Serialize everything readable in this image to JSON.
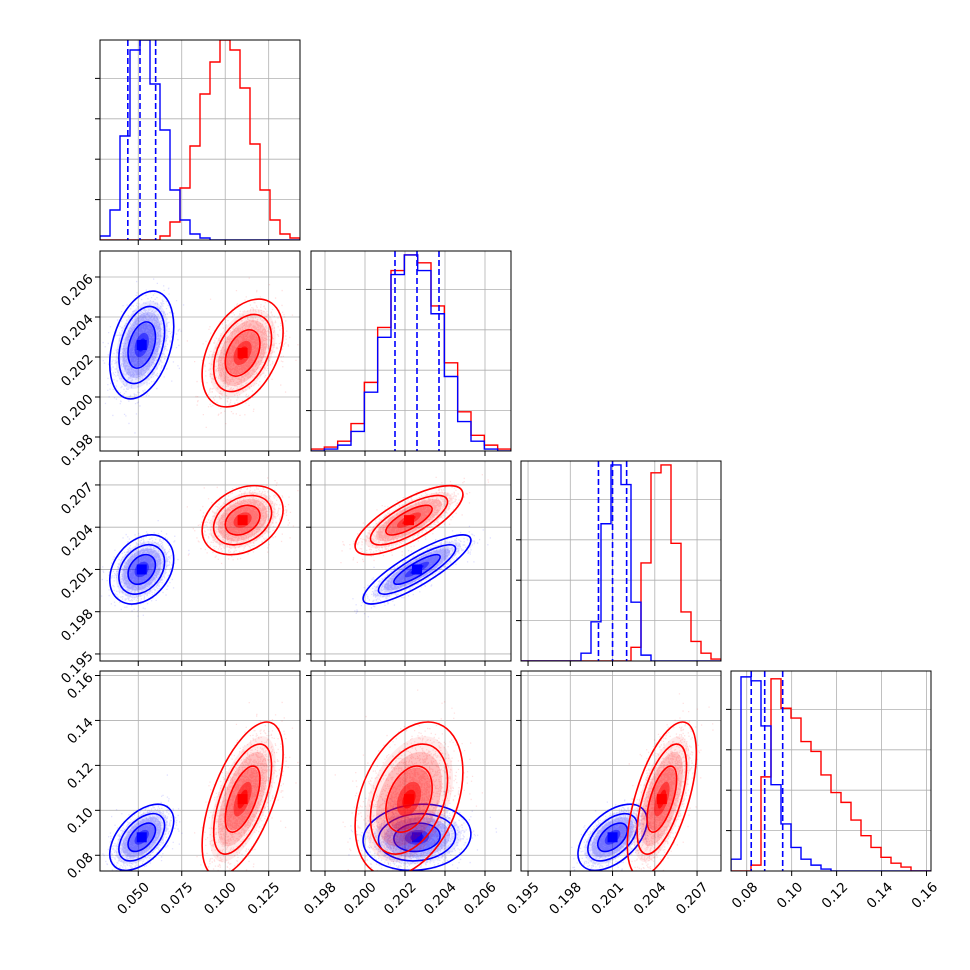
{
  "chart_data": {
    "type": "corner",
    "colors": {
      "blue": "#0000ff",
      "red": "#ff0000"
    },
    "params": [
      {
        "id": "p1",
        "range": [
          0.028,
          0.143
        ],
        "ticks": [
          0.05,
          0.075,
          0.1,
          0.125
        ],
        "tick_labels": [
          "0.050",
          "0.075",
          "0.100",
          "0.125"
        ]
      },
      {
        "id": "p2",
        "range": [
          0.1973,
          0.2073
        ],
        "ticks": [
          0.198,
          0.2,
          0.202,
          0.204,
          0.206
        ],
        "tick_labels": [
          "0.198",
          "0.200",
          "0.202",
          "0.204",
          "0.206"
        ]
      },
      {
        "id": "p3",
        "range": [
          0.1945,
          0.2087
        ],
        "ticks": [
          0.195,
          0.198,
          0.201,
          0.204,
          0.207
        ],
        "tick_labels": [
          "0.195",
          "0.198",
          "0.201",
          "0.204",
          "0.207"
        ]
      },
      {
        "id": "p4",
        "range": [
          0.073,
          0.162
        ],
        "ticks": [
          0.08,
          0.1,
          0.12,
          0.14,
          0.16
        ],
        "tick_labels": [
          "0.08",
          "0.10",
          "0.12",
          "0.14",
          "0.16"
        ]
      }
    ],
    "series": [
      {
        "color": "blue",
        "mean": [
          0.052,
          0.2026,
          0.201,
          0.088
        ],
        "sd": [
          0.0075,
          0.0011,
          0.001,
          0.006
        ],
        "corr": {
          "0-1": 0.35,
          "0-2": 0.3,
          "0-3": 0.5,
          "1-2": 0.85,
          "1-3": 0.1,
          "2-3": 0.5
        }
      },
      {
        "color": "red",
        "mean": [
          0.11,
          0.2022,
          0.2045,
          0.105
        ],
        "sd": [
          0.0095,
          0.0011,
          0.001,
          0.014
        ],
        "corr": {
          "0-1": 0.4,
          "0-2": 0.3,
          "0-3": 0.6,
          "1-2": 0.75,
          "1-3": 0.35,
          "2-3": 0.6
        }
      }
    ],
    "quantile_lines": {
      "color": "blue",
      "values": [
        [
          0.044,
          0.051,
          0.06
        ],
        [
          0.2015,
          0.2026,
          0.2037
        ],
        [
          0.2,
          0.201,
          0.202
        ],
        [
          0.082,
          0.088,
          0.096
        ]
      ]
    },
    "hist_blue": [
      [
        2,
        15,
        52,
        95,
        100,
        78,
        55,
        25,
        10,
        3,
        1,
        0,
        0,
        0,
        0,
        0,
        0,
        0,
        0,
        0
      ],
      [
        0,
        1,
        3,
        10,
        30,
        58,
        90,
        100,
        92,
        70,
        38,
        15,
        5,
        1,
        0
      ],
      [
        0,
        0,
        0,
        0,
        0,
        0,
        4,
        20,
        70,
        100,
        90,
        30,
        3,
        0,
        0,
        0,
        0,
        0,
        0,
        0
      ],
      [
        6,
        99,
        97,
        74,
        44,
        24,
        12,
        6,
        3,
        1,
        0,
        0,
        0,
        0,
        0,
        0,
        0,
        0,
        0,
        0
      ]
    ],
    "hist_red": [
      [
        0,
        0,
        0,
        0,
        0,
        0,
        2,
        9,
        26,
        47,
        73,
        89,
        100,
        95,
        76,
        48,
        25,
        10,
        3,
        1
      ],
      [
        1,
        2,
        5,
        14,
        35,
        63,
        92,
        100,
        96,
        74,
        45,
        20,
        8,
        3,
        1
      ],
      [
        0,
        0,
        0,
        0,
        0,
        0,
        0,
        0,
        0,
        0,
        0,
        7,
        50,
        96,
        100,
        60,
        25,
        10,
        4,
        1
      ],
      [
        0,
        0,
        3,
        48,
        98,
        83,
        78,
        66,
        61,
        49,
        40,
        35,
        26,
        18,
        12,
        7,
        4,
        2,
        0,
        0
      ]
    ],
    "hist_ymax": [
      1.0,
      1.02,
      1.02,
      1.02
    ]
  }
}
